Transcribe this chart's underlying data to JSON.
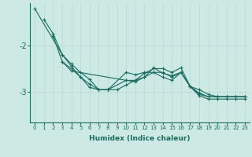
{
  "background_color": "#cce9e4",
  "grid_color": "#b8d8d4",
  "line_color": "#1a6b60",
  "x_label": "Humidex (Indice chaleur)",
  "ytick_vals": [
    -3,
    -2
  ],
  "ytick_labels": [
    "-3",
    "-2"
  ],
  "xlim": [
    -0.5,
    23.5
  ],
  "ylim": [
    -3.65,
    -1.1
  ],
  "series": [
    [
      null,
      -1.45,
      -1.75,
      -2.2,
      -2.45,
      -2.68,
      -2.9,
      -2.95,
      -2.95,
      null,
      -2.58,
      -2.63,
      -2.58,
      -2.58,
      -2.68,
      -2.75,
      -2.58,
      -2.88,
      -2.95,
      -3.05,
      -3.1,
      -3.1,
      -3.1,
      -3.1
    ],
    [
      null,
      null,
      -1.8,
      -2.35,
      -2.55,
      null,
      null,
      null,
      null,
      null,
      -2.75,
      -2.78,
      -2.68,
      -2.48,
      -2.6,
      -2.65,
      -2.58,
      -2.88,
      -3.08,
      -3.15,
      -3.15,
      -3.15,
      -3.15,
      -3.15
    ],
    [
      -1.22,
      null,
      null,
      -2.2,
      -2.4,
      -2.58,
      -2.73,
      -2.95,
      -2.95,
      -2.95,
      -2.85,
      -2.75,
      -2.6,
      -2.5,
      -2.5,
      -2.58,
      -2.48,
      -2.88,
      -3.05,
      -3.1,
      -3.1,
      -3.1,
      -3.1,
      -3.1
    ],
    [
      null,
      null,
      null,
      -2.35,
      -2.5,
      -2.68,
      -2.83,
      -2.95,
      -2.95,
      null,
      -2.75,
      -2.75,
      -2.68,
      -2.58,
      -2.58,
      -2.68,
      -2.58,
      -2.88,
      -3.02,
      -3.1,
      -3.1,
      -3.1,
      -3.1,
      -3.1
    ]
  ],
  "xlabel_fontsize": 6.5,
  "xtick_fontsize": 5,
  "ytick_fontsize": 7
}
